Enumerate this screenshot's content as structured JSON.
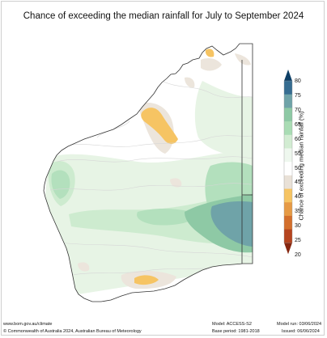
{
  "title": "Chance of exceeding the median rainfall for July to September 2024",
  "legend": {
    "title": "Chance of exceeding median rainfall (%)",
    "ticks": [
      "80",
      "75",
      "70",
      "65",
      "60",
      "55",
      "50",
      "45",
      "40",
      "35",
      "30",
      "25",
      "20"
    ],
    "colors": [
      "#0d3f66",
      "#366d91",
      "#6fa3a8",
      "#8ec9a5",
      "#a9dcb4",
      "#d2ecd2",
      "#eef7ee",
      "#ffffff",
      "#e9e1d7",
      "#f6c463",
      "#e69a45",
      "#d36f2c",
      "#b5441f",
      "#86260f"
    ]
  },
  "footer": {
    "url": "www.bom.gov.au/climate",
    "copyright": "© Commonwealth of Australia 2024, Australian Bureau of Meteorology",
    "model": "Model: ACCESS-S2",
    "base_period": "Base period: 1981-2018",
    "model_run": "Model run: 03/06/2024",
    "issued": "Issued: 06/06/2024"
  },
  "colors": {
    "land_white": "#ffffff",
    "light_green": "#d8efd6",
    "mid_green": "#a9dcb4",
    "teal": "#8ec9a5",
    "dark_teal": "#6fa3a8",
    "tan": "#e9e1d7",
    "orange": "#f6c463",
    "coast": "#333333",
    "contour": "#d9d9d9"
  }
}
